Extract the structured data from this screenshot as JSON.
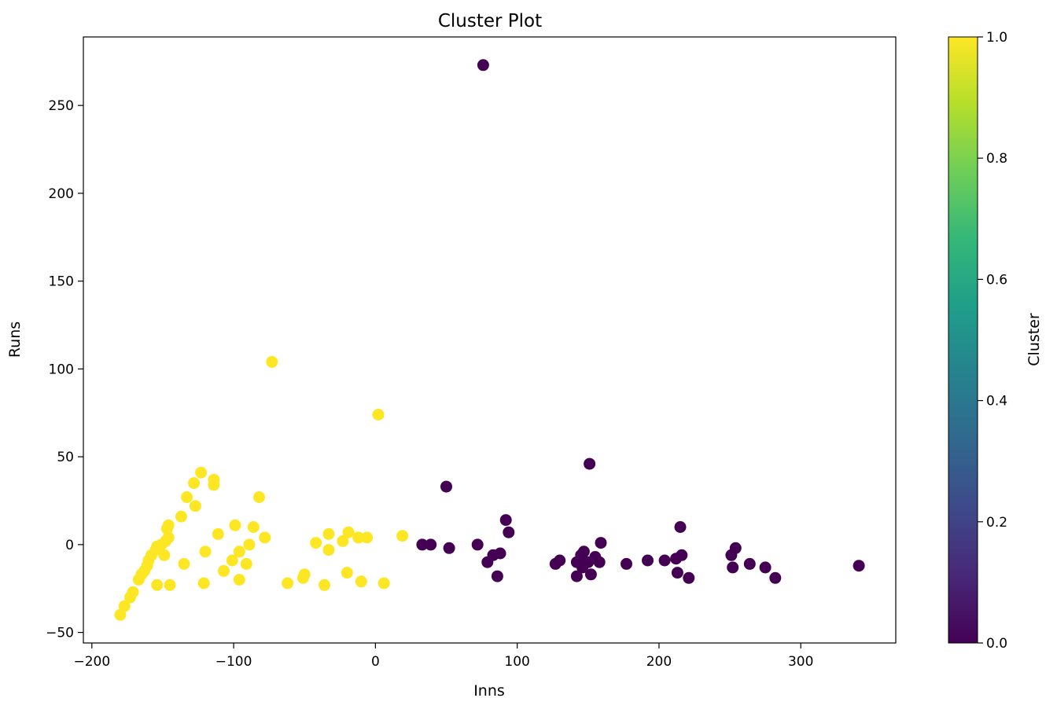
{
  "chart_data": {
    "type": "scatter",
    "title": "Cluster Plot",
    "xlabel": "Inns",
    "ylabel": "Runs",
    "xlim": [
      -206,
      367
    ],
    "ylim": [
      -56,
      289
    ],
    "xticks": [
      -200,
      -100,
      0,
      100,
      200,
      300
    ],
    "xtick_labels": [
      "−200",
      "−100",
      "0",
      "100",
      "200",
      "300"
    ],
    "yticks": [
      -50,
      0,
      50,
      100,
      150,
      200,
      250
    ],
    "ytick_labels": [
      "−50",
      "0",
      "50",
      "100",
      "150",
      "200",
      "250"
    ],
    "grid": false,
    "colormap": "viridis",
    "colormap_stops": [
      "#440154",
      "#482878",
      "#3e4989",
      "#31688e",
      "#26828e",
      "#1f9e89",
      "#35b779",
      "#6ece58",
      "#b5de2b",
      "#fde725"
    ],
    "colorbar": {
      "label": "Cluster",
      "range": [
        0.0,
        1.0
      ],
      "ticks": [
        0.0,
        0.2,
        0.4,
        0.6,
        0.8,
        1.0
      ],
      "tick_labels": [
        "0.0",
        "0.2",
        "0.4",
        "0.6",
        "0.8",
        "1.0"
      ]
    },
    "points": [
      {
        "x": 76,
        "y": 273,
        "cluster": 0
      },
      {
        "x": 151,
        "y": 46,
        "cluster": 0
      },
      {
        "x": 50,
        "y": 33,
        "cluster": 0
      },
      {
        "x": 92,
        "y": 14,
        "cluster": 0
      },
      {
        "x": 94,
        "y": 7,
        "cluster": 0
      },
      {
        "x": 33,
        "y": 0,
        "cluster": 0
      },
      {
        "x": 39,
        "y": 0,
        "cluster": 0
      },
      {
        "x": 52,
        "y": -2,
        "cluster": 0
      },
      {
        "x": 72,
        "y": 0,
        "cluster": 0
      },
      {
        "x": 79,
        "y": -10,
        "cluster": 0
      },
      {
        "x": 83,
        "y": -6,
        "cluster": 0
      },
      {
        "x": 88,
        "y": -5,
        "cluster": 0
      },
      {
        "x": 86,
        "y": -18,
        "cluster": 0
      },
      {
        "x": 127,
        "y": -11,
        "cluster": 0
      },
      {
        "x": 130,
        "y": -9,
        "cluster": 0
      },
      {
        "x": 142,
        "y": -10,
        "cluster": 0
      },
      {
        "x": 145,
        "y": -6,
        "cluster": 0
      },
      {
        "x": 147,
        "y": -4,
        "cluster": 0
      },
      {
        "x": 142,
        "y": -18,
        "cluster": 0
      },
      {
        "x": 146,
        "y": -13,
        "cluster": 0
      },
      {
        "x": 150,
        "y": -10,
        "cluster": 0
      },
      {
        "x": 152,
        "y": -17,
        "cluster": 0
      },
      {
        "x": 155,
        "y": -7,
        "cluster": 0
      },
      {
        "x": 158,
        "y": -10,
        "cluster": 0
      },
      {
        "x": 159,
        "y": 1,
        "cluster": 0
      },
      {
        "x": 177,
        "y": -11,
        "cluster": 0
      },
      {
        "x": 192,
        "y": -9,
        "cluster": 0
      },
      {
        "x": 204,
        "y": -9,
        "cluster": 0
      },
      {
        "x": 212,
        "y": -8,
        "cluster": 0
      },
      {
        "x": 216,
        "y": -6,
        "cluster": 0
      },
      {
        "x": 215,
        "y": 10,
        "cluster": 0
      },
      {
        "x": 213,
        "y": -16,
        "cluster": 0
      },
      {
        "x": 221,
        "y": -19,
        "cluster": 0
      },
      {
        "x": 251,
        "y": -6,
        "cluster": 0
      },
      {
        "x": 254,
        "y": -2,
        "cluster": 0
      },
      {
        "x": 252,
        "y": -13,
        "cluster": 0
      },
      {
        "x": 264,
        "y": -11,
        "cluster": 0
      },
      {
        "x": 275,
        "y": -13,
        "cluster": 0
      },
      {
        "x": 282,
        "y": -19,
        "cluster": 0
      },
      {
        "x": 341,
        "y": -12,
        "cluster": 0
      },
      {
        "x": -73,
        "y": 104,
        "cluster": 1
      },
      {
        "x": 2,
        "y": 74,
        "cluster": 1
      },
      {
        "x": -123,
        "y": 41,
        "cluster": 1
      },
      {
        "x": -114,
        "y": 37,
        "cluster": 1
      },
      {
        "x": -114,
        "y": 34,
        "cluster": 1
      },
      {
        "x": -128,
        "y": 35,
        "cluster": 1
      },
      {
        "x": -133,
        "y": 27,
        "cluster": 1
      },
      {
        "x": -127,
        "y": 22,
        "cluster": 1
      },
      {
        "x": -82,
        "y": 27,
        "cluster": 1
      },
      {
        "x": -137,
        "y": 16,
        "cluster": 1
      },
      {
        "x": -146,
        "y": 11,
        "cluster": 1
      },
      {
        "x": -147,
        "y": 9,
        "cluster": 1
      },
      {
        "x": -146,
        "y": 4,
        "cluster": 1
      },
      {
        "x": -148,
        "y": 2,
        "cluster": 1
      },
      {
        "x": -151,
        "y": 0,
        "cluster": 1
      },
      {
        "x": -154,
        "y": -1,
        "cluster": 1
      },
      {
        "x": -155,
        "y": -3,
        "cluster": 1
      },
      {
        "x": -149,
        "y": -6,
        "cluster": 1
      },
      {
        "x": -158,
        "y": -6,
        "cluster": 1
      },
      {
        "x": -160,
        "y": -9,
        "cluster": 1
      },
      {
        "x": -161,
        "y": -12,
        "cluster": 1
      },
      {
        "x": -163,
        "y": -15,
        "cluster": 1
      },
      {
        "x": -165,
        "y": -17,
        "cluster": 1
      },
      {
        "x": -167,
        "y": -20,
        "cluster": 1
      },
      {
        "x": -154,
        "y": -23,
        "cluster": 1
      },
      {
        "x": -145,
        "y": -23,
        "cluster": 1
      },
      {
        "x": -171,
        "y": -27,
        "cluster": 1
      },
      {
        "x": -173,
        "y": -30,
        "cluster": 1
      },
      {
        "x": -177,
        "y": -35,
        "cluster": 1
      },
      {
        "x": -180,
        "y": -40,
        "cluster": 1
      },
      {
        "x": -135,
        "y": -11,
        "cluster": 1
      },
      {
        "x": -121,
        "y": -22,
        "cluster": 1
      },
      {
        "x": -120,
        "y": -4,
        "cluster": 1
      },
      {
        "x": -111,
        "y": 6,
        "cluster": 1
      },
      {
        "x": -107,
        "y": -15,
        "cluster": 1
      },
      {
        "x": -99,
        "y": 11,
        "cluster": 1
      },
      {
        "x": -101,
        "y": -9,
        "cluster": 1
      },
      {
        "x": -96,
        "y": -4,
        "cluster": 1
      },
      {
        "x": -96,
        "y": -20,
        "cluster": 1
      },
      {
        "x": -91,
        "y": -11,
        "cluster": 1
      },
      {
        "x": -89,
        "y": 0,
        "cluster": 1
      },
      {
        "x": -86,
        "y": 10,
        "cluster": 1
      },
      {
        "x": -78,
        "y": 4,
        "cluster": 1
      },
      {
        "x": -62,
        "y": -22,
        "cluster": 1
      },
      {
        "x": -51,
        "y": -19,
        "cluster": 1
      },
      {
        "x": -50,
        "y": -17,
        "cluster": 1
      },
      {
        "x": -42,
        "y": 1,
        "cluster": 1
      },
      {
        "x": -36,
        "y": -23,
        "cluster": 1
      },
      {
        "x": -33,
        "y": 6,
        "cluster": 1
      },
      {
        "x": -33,
        "y": -3,
        "cluster": 1
      },
      {
        "x": -23,
        "y": 2,
        "cluster": 1
      },
      {
        "x": -19,
        "y": 7,
        "cluster": 1
      },
      {
        "x": -20,
        "y": -16,
        "cluster": 1
      },
      {
        "x": -12,
        "y": 4,
        "cluster": 1
      },
      {
        "x": -10,
        "y": -21,
        "cluster": 1
      },
      {
        "x": -6,
        "y": 4,
        "cluster": 1
      },
      {
        "x": 6,
        "y": -22,
        "cluster": 1
      },
      {
        "x": 19,
        "y": 5,
        "cluster": 1
      }
    ]
  }
}
